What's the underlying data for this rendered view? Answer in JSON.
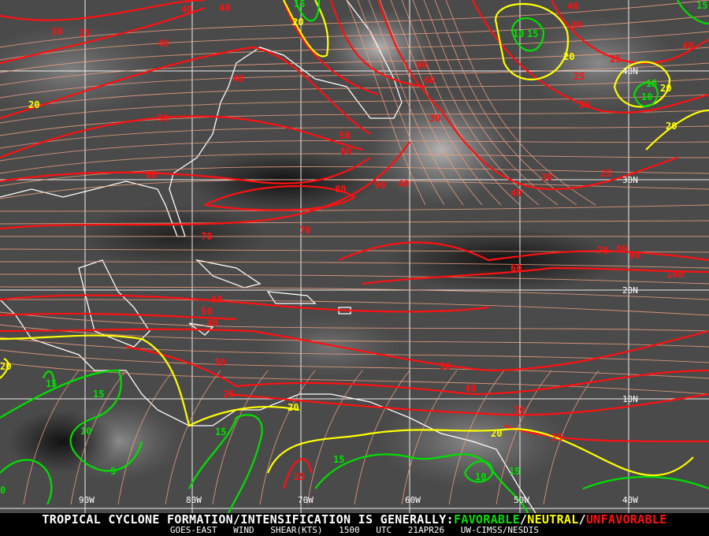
{
  "caption": {
    "headline": "TROPICAL CYCLONE FORMATION/INTENSIFICATION IS GENERALLY:",
    "favorable": "FAVORABLE",
    "sep1": "/",
    "neutral": "NEUTRAL",
    "sep2": "/",
    "unfavorable": "UNFAVORABLE",
    "product": "GOES-EAST WIND SHEAR(KTS)",
    "time": "1500 UTC",
    "date": "21APR26",
    "credit": "UW-CIMSS/NESDIS"
  },
  "colors": {
    "favorable": "#00e000",
    "neutral": "#ffff00",
    "unfavorable": "#ff1010",
    "streamline": "#f0a080",
    "coastline": "#ffffff",
    "grid": "#ffffff"
  },
  "longitude_labels": [
    "90W",
    "80W",
    "70W",
    "60W",
    "50W",
    "40W"
  ],
  "latitude_labels": [
    "40N",
    "30N",
    "20N",
    "10N"
  ],
  "contour_labels": {
    "red": [
      "30",
      "25",
      "40",
      "40",
      "40",
      "40",
      "50",
      "60",
      "70",
      "80",
      "90",
      "70",
      "50",
      "60",
      "90",
      "60",
      "30",
      "40",
      "40",
      "30",
      "25",
      "30",
      "25",
      "25",
      "40",
      "30",
      "40",
      "60",
      "70",
      "80",
      "90",
      "100",
      "60",
      "50",
      "40",
      "30",
      "25",
      "50",
      "40",
      "30",
      "25",
      "25"
    ],
    "yellow": [
      "20",
      "20",
      "20",
      "20",
      "20",
      "20",
      "20",
      "20"
    ],
    "green": [
      "15",
      "10",
      "15",
      "15",
      "10",
      "15",
      "15",
      "15",
      "10",
      "15",
      "15",
      "5",
      "10",
      "15",
      "0"
    ]
  }
}
